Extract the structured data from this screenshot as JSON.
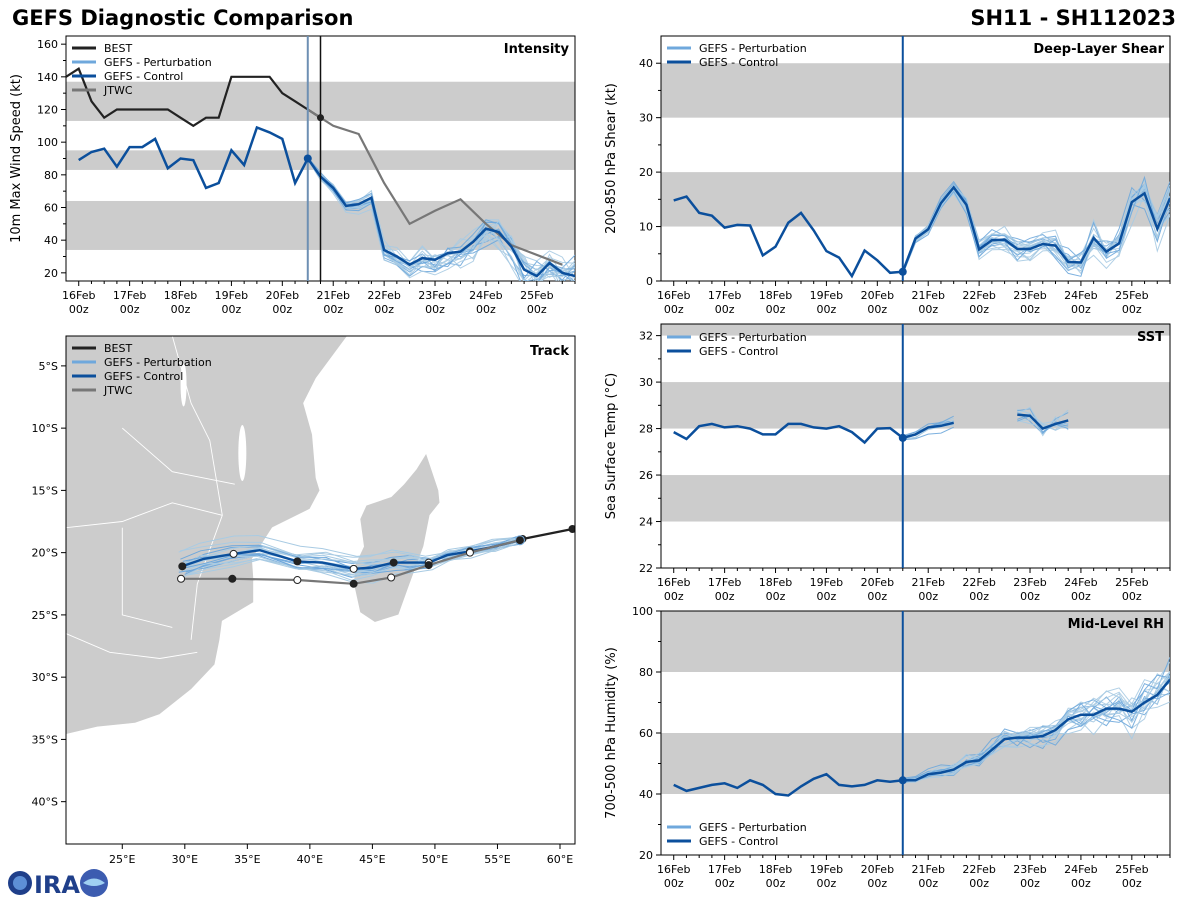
{
  "header": {
    "left_title": "GEFS Diagnostic Comparison",
    "right_title": "SH11 - SH112023"
  },
  "time_ticks": [
    {
      "day": "16Feb",
      "hour": "00z"
    },
    {
      "day": "17Feb",
      "hour": "00z"
    },
    {
      "day": "18Feb",
      "hour": "00z"
    },
    {
      "day": "19Feb",
      "hour": "00z"
    },
    {
      "day": "20Feb",
      "hour": "00z"
    },
    {
      "day": "21Feb",
      "hour": "00z"
    },
    {
      "day": "22Feb",
      "hour": "00z"
    },
    {
      "day": "23Feb",
      "hour": "00z"
    },
    {
      "day": "24Feb",
      "hour": "00z"
    },
    {
      "day": "25Feb",
      "hour": "00z"
    }
  ],
  "legend_labels": {
    "best": "BEST",
    "pert": "GEFS - Perturbation",
    "control": "GEFS - Control",
    "jtwc": "JTWC"
  },
  "colors": {
    "best": "#222222",
    "pert": "#6fa8dc",
    "pert_light": "#a9cbe3",
    "control": "#0b4f9c",
    "jtwc": "#777777",
    "band": "#cccccc",
    "land": "#cccccc"
  },
  "chart_data": [
    {
      "id": "intensity",
      "type": "line",
      "title": "Intensity",
      "ylabel": "10m Max Wind Speed (kt)",
      "xlim": [
        -0.25,
        9.75
      ],
      "ylim": [
        15,
        165
      ],
      "yticks": [
        20,
        40,
        60,
        80,
        100,
        120,
        140,
        160
      ],
      "bands": [
        [
          34,
          64
        ],
        [
          83,
          95
        ],
        [
          113,
          137
        ]
      ],
      "init_time": 4.5,
      "best_end": 4.75,
      "series": [
        {
          "name": "BEST",
          "role": "best",
          "x": [
            -0.25,
            0,
            0.25,
            0.5,
            0.75,
            1,
            1.25,
            1.5,
            1.75,
            2,
            2.25,
            2.5,
            2.75,
            3,
            3.25,
            3.5,
            3.75,
            4,
            4.25,
            4.5,
            4.75
          ],
          "y": [
            140,
            145,
            125,
            115,
            120,
            120,
            120,
            120,
            120,
            115,
            110,
            115,
            115,
            140,
            140,
            140,
            140,
            130,
            125,
            120,
            115
          ]
        },
        {
          "name": "JTWC",
          "role": "jtwc",
          "x": [
            4.5,
            5,
            5.5,
            6,
            6.5,
            7,
            7.5,
            8,
            8.5,
            9.5
          ],
          "y": [
            120,
            110,
            105,
            75,
            50,
            58,
            65,
            50,
            37,
            25
          ]
        },
        {
          "name": "GEFS - Control",
          "role": "control",
          "x": [
            0,
            0.25,
            0.5,
            0.75,
            1,
            1.25,
            1.5,
            1.75,
            2,
            2.25,
            2.5,
            2.75,
            3,
            3.25,
            3.5,
            3.75,
            4,
            4.25,
            4.5,
            4.75,
            5,
            5.25,
            5.5,
            5.75,
            6,
            6.25,
            6.5,
            6.75,
            7,
            7.25,
            7.5,
            7.75,
            8,
            8.25,
            8.5,
            8.75,
            9,
            9.25,
            9.5,
            9.75
          ],
          "y": [
            89,
            94,
            96,
            85,
            97,
            97,
            102,
            84,
            90,
            89,
            72,
            75,
            95,
            86,
            109,
            106,
            102,
            75,
            90,
            79,
            72,
            61,
            62,
            66,
            34,
            30,
            25,
            29,
            28,
            32,
            33,
            39,
            47,
            45,
            36,
            22,
            18,
            26,
            20,
            18
          ]
        }
      ],
      "perturbation_count": 20
    },
    {
      "id": "shear",
      "type": "line",
      "title": "Deep-Layer Shear",
      "ylabel": "200-850 hPa Shear (kt)",
      "xlim": [
        -0.25,
        9.75
      ],
      "ylim": [
        0,
        45
      ],
      "yticks": [
        0,
        10,
        20,
        30,
        40
      ],
      "bands": [
        [
          10,
          20
        ],
        [
          30,
          40
        ]
      ],
      "init_time": 4.5,
      "series": [
        {
          "name": "GEFS - Control",
          "role": "control",
          "x": [
            0,
            0.25,
            0.5,
            0.75,
            1,
            1.25,
            1.5,
            1.75,
            2,
            2.25,
            2.5,
            2.75,
            3,
            3.25,
            3.5,
            3.75,
            4,
            4.25,
            4.5,
            4.75,
            5,
            5.25,
            5.5,
            5.75,
            6,
            6.25,
            6.5,
            6.75,
            7,
            7.25,
            7.5,
            7.75,
            8,
            8.25,
            8.5,
            8.75,
            9,
            9.25,
            9.5,
            9.75
          ],
          "y": [
            14.8,
            15.5,
            12.5,
            12,
            9.8,
            10.3,
            10.2,
            4.7,
            6.3,
            10.7,
            12.5,
            9.3,
            5.5,
            4.3,
            0.9,
            5.6,
            3.8,
            1.5,
            1.7,
            7.8,
            9.5,
            14.3,
            17.2,
            14,
            5.8,
            7.5,
            7.6,
            5.9,
            5.9,
            6.8,
            6.5,
            3.5,
            3.4,
            7.9,
            5.4,
            6.9,
            14.5,
            16.1,
            9.6,
            15.2
          ]
        }
      ],
      "perturbation_count": 20
    },
    {
      "id": "sst",
      "type": "line",
      "title": "SST",
      "ylabel": "Sea Surface Temp (°C)",
      "xlim": [
        -0.25,
        9.75
      ],
      "ylim": [
        22,
        32.5
      ],
      "yticks": [
        22,
        24,
        26,
        28,
        30,
        32
      ],
      "bands": [
        [
          24,
          26
        ],
        [
          28,
          30
        ],
        [
          32,
          32.5
        ]
      ],
      "init_time": 4.5,
      "series": [
        {
          "name": "GEFS - Control (part 1)",
          "role": "control",
          "x": [
            0,
            0.25,
            0.5,
            0.75,
            1,
            1.25,
            1.5,
            1.75,
            2,
            2.25,
            2.5,
            2.75,
            3,
            3.25,
            3.5,
            3.75,
            4,
            4.25,
            4.5,
            4.75,
            5,
            5.25,
            5.5
          ],
          "y": [
            27.85,
            27.55,
            28.1,
            28.2,
            28.05,
            28.1,
            28.0,
            27.75,
            27.75,
            28.2,
            28.2,
            28.05,
            28.0,
            28.1,
            27.85,
            27.4,
            28.0,
            28.02,
            27.6,
            27.75,
            28.05,
            28.12,
            28.25
          ]
        },
        {
          "name": "GEFS - Control (part 2)",
          "role": "control",
          "x": [
            6.75,
            7,
            7.25,
            7.5,
            7.75
          ],
          "y": [
            28.6,
            28.55,
            28.0,
            28.2,
            28.35
          ]
        }
      ],
      "perturbation_count": 10
    },
    {
      "id": "rh",
      "type": "line",
      "title": "Mid-Level RH",
      "ylabel": "700-500 hPa Humidity (%)",
      "xlim": [
        -0.25,
        9.75
      ],
      "ylim": [
        20,
        100
      ],
      "yticks": [
        20,
        40,
        60,
        80,
        100
      ],
      "bands": [
        [
          40,
          60
        ],
        [
          80,
          100
        ]
      ],
      "init_time": 4.5,
      "series": [
        {
          "name": "GEFS - Control",
          "role": "control",
          "x": [
            0,
            0.25,
            0.5,
            0.75,
            1,
            1.25,
            1.5,
            1.75,
            2,
            2.25,
            2.5,
            2.75,
            3,
            3.25,
            3.5,
            3.75,
            4,
            4.25,
            4.5,
            4.75,
            5,
            5.25,
            5.5,
            5.75,
            6,
            6.25,
            6.5,
            6.75,
            7,
            7.25,
            7.5,
            7.75,
            8,
            8.25,
            8.5,
            8.75,
            9,
            9.25,
            9.5,
            9.75
          ],
          "y": [
            43,
            41,
            42,
            43,
            43.5,
            42,
            44.5,
            43,
            40,
            39.5,
            42.5,
            45,
            46.5,
            43,
            42.5,
            43,
            44.5,
            44,
            44.5,
            44.5,
            46.5,
            47,
            48,
            50.5,
            51,
            54.5,
            58,
            58.5,
            58.5,
            59,
            61,
            64.5,
            66,
            66,
            68,
            68,
            67,
            70,
            72.5,
            77.5
          ]
        }
      ],
      "perturbation_count": 20
    },
    {
      "id": "track",
      "type": "line",
      "title": "Track",
      "xlim": [
        20.5,
        61.2
      ],
      "ylim": [
        -43.4,
        -2.6
      ],
      "xticks": [
        25,
        30,
        35,
        40,
        45,
        50,
        55,
        60
      ],
      "xtick_labels": [
        "25°E",
        "30°E",
        "35°E",
        "40°E",
        "45°E",
        "50°E",
        "55°E",
        "60°E"
      ],
      "yticks": [
        -5,
        -10,
        -15,
        -20,
        -25,
        -30,
        -35,
        -40
      ],
      "ytick_labels": [
        "5°S",
        "10°S",
        "15°S",
        "20°S",
        "25°S",
        "30°S",
        "35°S",
        "40°S"
      ],
      "series": [
        {
          "name": "BEST",
          "role": "best",
          "x": [
            61,
            57
          ],
          "y": [
            -18.1,
            -18.9
          ]
        },
        {
          "name": "GEFS - Control",
          "role": "control",
          "x": [
            56.8,
            54.8,
            52.8,
            51,
            49.5,
            48,
            46.7,
            45,
            43.5,
            41,
            39,
            36,
            33.9,
            31.5,
            29.8
          ],
          "y": [
            -19,
            -19.5,
            -19.9,
            -20.2,
            -20.8,
            -20.8,
            -20.8,
            -21.2,
            -21.3,
            -20.8,
            -20.7,
            -19.8,
            -20.1,
            -20.5,
            -21.1
          ]
        },
        {
          "name": "JTWC",
          "role": "jtwc",
          "x": [
            56.8,
            52.8,
            49.5,
            46.5,
            43.5,
            39,
            33.8,
            29.7
          ],
          "y": [
            -19,
            -20,
            -21,
            -22,
            -22.5,
            -22.2,
            -22.1,
            -22.1
          ]
        }
      ],
      "perturbation_count": 20
    }
  ]
}
